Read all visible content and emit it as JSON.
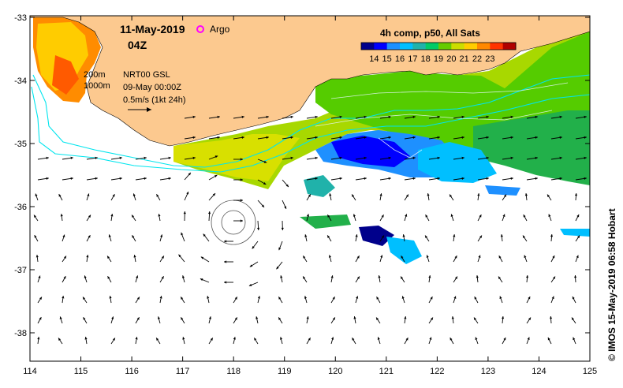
{
  "title": {
    "date": "11-May-2019",
    "hour": "04Z",
    "argo_label": "Argo",
    "argo_color": "#ff00ff"
  },
  "legend": {
    "colorbar_title": "4h comp, p50, All Sats",
    "ticks": [
      "14",
      "15",
      "16",
      "17",
      "18",
      "19",
      "20",
      "21",
      "22",
      "23"
    ],
    "colors": [
      "#00008b",
      "#0000ff",
      "#1e90ff",
      "#00bfff",
      "#20b2aa",
      "#00cc66",
      "#66cc00",
      "#ccdd00",
      "#ffcc00",
      "#ff8800",
      "#ff3300",
      "#b00000"
    ]
  },
  "info": {
    "contour_200": "200m",
    "contour_1000": "1000m",
    "altimetry": "NRT00 GSL",
    "altimetry_date": "09-May 00:00Z",
    "scale_vector": "0.5m/s (1kt 24h)"
  },
  "credit": "© IMOS 15-May-2019 06:58 Hobart",
  "axes": {
    "x_ticks": [
      "114",
      "115",
      "116",
      "117",
      "118",
      "119",
      "120",
      "121",
      "122",
      "123",
      "124",
      "125"
    ],
    "y_ticks": [
      "-33",
      "-34",
      "-35",
      "-36",
      "-37",
      "-38"
    ]
  },
  "colors": {
    "land": "#fcc98f",
    "shelf_contour": "#00e5ee"
  }
}
